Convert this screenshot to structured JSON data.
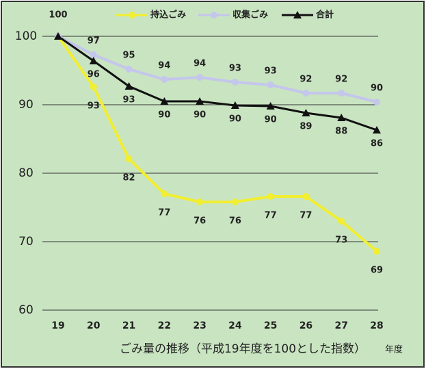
{
  "chart_data": {
    "type": "line",
    "title": "ごみ量の推移（平成19年度を100とした指数）",
    "x_label": "年度",
    "categories": [
      "19",
      "20",
      "21",
      "22",
      "23",
      "24",
      "25",
      "26",
      "27",
      "28"
    ],
    "ylim": [
      60,
      100
    ],
    "yticks": [
      60,
      70,
      80,
      90,
      100
    ],
    "grid": true,
    "legend": "top",
    "series": [
      {
        "name": "持込ごみ",
        "color": "#f2ee30",
        "marker": "circle",
        "values": [
          100,
          92.6,
          82.1,
          77.0,
          75.8,
          75.8,
          76.6,
          76.6,
          73.0,
          68.6
        ],
        "value_labels": [
          null,
          "93",
          "82",
          "77",
          "76",
          "76",
          "77",
          "77",
          "73",
          "69"
        ]
      },
      {
        "name": "収集ごみ",
        "color": "#c4c6ec",
        "marker": "circle",
        "values": [
          100,
          97.3,
          95.2,
          93.7,
          94.0,
          93.3,
          92.9,
          91.7,
          91.7,
          90.4
        ],
        "value_labels": [
          null,
          "97",
          "95",
          "94",
          "94",
          "93",
          "93",
          "92",
          "92",
          "90"
        ]
      },
      {
        "name": "合計",
        "color": "#111111",
        "marker": "triangle",
        "values": [
          100,
          96.4,
          92.7,
          90.5,
          90.5,
          89.9,
          89.8,
          88.8,
          88.1,
          86.3
        ],
        "value_labels": [
          "100",
          "96",
          "93",
          "90",
          "90",
          "90",
          "90",
          "89",
          "88",
          "86"
        ]
      }
    ]
  }
}
